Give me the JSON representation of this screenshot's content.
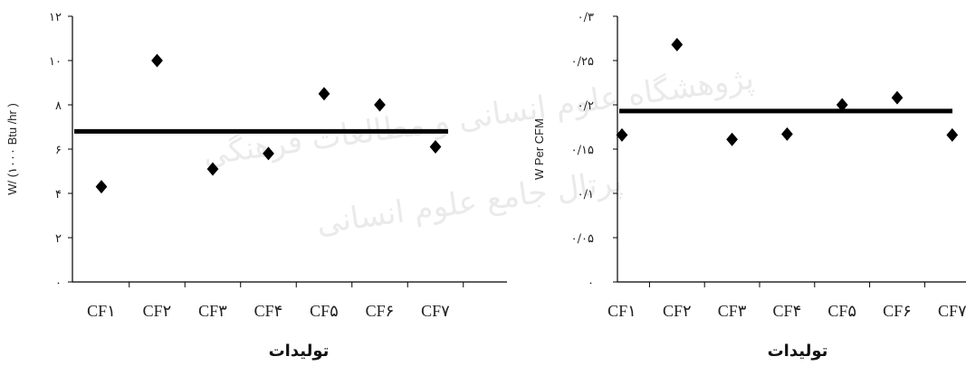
{
  "chart_data": [
    {
      "type": "scatter",
      "ylabel": "W/ (۱۰۰۰ Btu /hr )",
      "xlabel": "تولیدات",
      "categories": [
        "CF۱",
        "CF۲",
        "CF۳",
        "CF۴",
        "CF۵",
        "CF۶",
        "CF۷"
      ],
      "values": [
        4.3,
        10.0,
        5.1,
        5.8,
        8.5,
        8.0,
        6.1
      ],
      "mean_line": 6.8,
      "ylim": [
        0,
        12
      ],
      "yticks": [
        0,
        2,
        4,
        6,
        8,
        10,
        12
      ],
      "ytick_labels": [
        "۰",
        "۲",
        "۴",
        "۶",
        "۸",
        "۱۰",
        "۱۲"
      ],
      "marker": "diamond",
      "color": "#000000"
    },
    {
      "type": "scatter",
      "ylabel": "W Per CFM",
      "xlabel": "تولیدات",
      "categories": [
        "CF۱",
        "CF۲",
        "CF۳",
        "CF۴",
        "CF۵",
        "CF۶",
        "CF۷"
      ],
      "values": [
        0.166,
        0.268,
        0.161,
        0.167,
        0.2,
        0.208,
        0.166
      ],
      "mean_line": 0.193,
      "ylim": [
        0,
        0.3
      ],
      "yticks": [
        0,
        0.05,
        0.1,
        0.15,
        0.2,
        0.25,
        0.3
      ],
      "ytick_labels": [
        "۰",
        "۰/۰۵",
        "۰/۱",
        "۰/۱۵",
        "۰/۲",
        "۰/۲۵",
        "۰/۳"
      ],
      "marker": "diamond",
      "color": "#000000"
    }
  ],
  "watermark": {
    "line1": "پژوهشگاه علوم انسانی و مطالعات فرهنگی",
    "line2": "پرتال جامع علوم انسانی"
  }
}
